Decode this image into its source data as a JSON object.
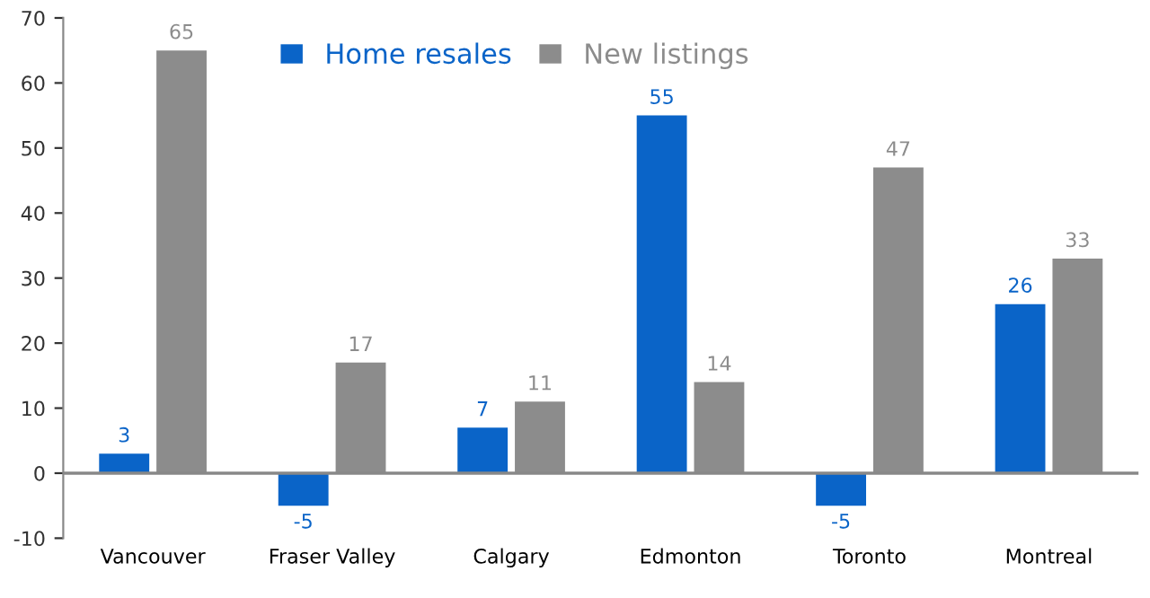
{
  "chart_data": {
    "type": "bar",
    "categories": [
      "Vancouver",
      "Fraser Valley",
      "Calgary",
      "Edmonton",
      "Toronto",
      "Montreal"
    ],
    "series": [
      {
        "name": "Home resales",
        "color": "#0a64c8",
        "values": [
          3,
          -5,
          7,
          55,
          -5,
          26
        ]
      },
      {
        "name": "New listings",
        "color": "#8c8c8c",
        "values": [
          65,
          17,
          11,
          14,
          47,
          33
        ]
      }
    ],
    "ylim": [
      -10,
      70
    ],
    "yticks": [
      -10,
      0,
      10,
      20,
      30,
      40,
      50,
      60,
      70
    ],
    "data_labels": true,
    "legend": "top",
    "ref_lines": [
      {
        "axis": "y",
        "value": 0,
        "color": "#888888"
      }
    ]
  }
}
